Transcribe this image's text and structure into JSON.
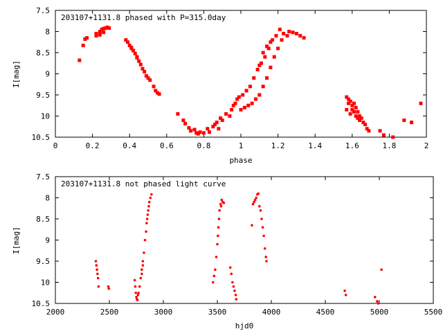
{
  "chart_data": [
    {
      "type": "scatter",
      "title": "203107+1131.8 phased with P=315.0day",
      "xlabel": "phase",
      "ylabel": "I[mag]",
      "xlim": [
        0,
        2
      ],
      "ylim": [
        10.5,
        7.5
      ],
      "y_inverted": true,
      "x_ticks": [
        0,
        0.2,
        0.4,
        0.6,
        0.8,
        1,
        1.2,
        1.4,
        1.6,
        1.8,
        2
      ],
      "x_tick_labels": [
        "0",
        "0.2",
        "0.4",
        "0.6",
        "0.8",
        "1",
        "1.2",
        "1.4",
        "1.6",
        "1.8",
        "2"
      ],
      "y_ticks": [
        7.5,
        8,
        8.5,
        9,
        9.5,
        10,
        10.5
      ],
      "y_tick_labels": [
        "7.5",
        "8",
        "8.5",
        "9",
        "9.5",
        "10",
        "10.5"
      ],
      "grid": false,
      "marker_color": "#ff0000",
      "marker": "square",
      "points": [
        [
          0.13,
          8.68
        ],
        [
          0.15,
          8.33
        ],
        [
          0.16,
          8.18
        ],
        [
          0.17,
          8.15
        ],
        [
          0.22,
          8.1
        ],
        [
          0.22,
          8.05
        ],
        [
          0.24,
          8.0
        ],
        [
          0.25,
          7.95
        ],
        [
          0.26,
          7.93
        ],
        [
          0.27,
          7.92
        ],
        [
          0.28,
          7.9
        ],
        [
          0.29,
          7.92
        ],
        [
          0.24,
          8.08
        ],
        [
          0.26,
          8.02
        ],
        [
          0.38,
          8.2
        ],
        [
          0.39,
          8.25
        ],
        [
          0.4,
          8.33
        ],
        [
          0.41,
          8.4
        ],
        [
          0.42,
          8.45
        ],
        [
          0.43,
          8.52
        ],
        [
          0.44,
          8.6
        ],
        [
          0.45,
          8.7
        ],
        [
          0.46,
          8.78
        ],
        [
          0.47,
          8.88
        ],
        [
          0.48,
          8.95
        ],
        [
          0.49,
          9.05
        ],
        [
          0.5,
          9.1
        ],
        [
          0.51,
          9.15
        ],
        [
          0.53,
          9.3
        ],
        [
          0.54,
          9.4
        ],
        [
          0.55,
          9.45
        ],
        [
          0.56,
          9.48
        ],
        [
          0.41,
          8.38
        ],
        [
          0.44,
          8.62
        ],
        [
          0.66,
          9.95
        ],
        [
          0.69,
          10.1
        ],
        [
          0.7,
          10.18
        ],
        [
          0.72,
          10.28
        ],
        [
          0.73,
          10.35
        ],
        [
          0.75,
          10.32
        ],
        [
          0.76,
          10.4
        ],
        [
          0.77,
          10.42
        ],
        [
          0.78,
          10.38
        ],
        [
          0.8,
          10.4
        ],
        [
          0.82,
          10.3
        ],
        [
          0.83,
          10.38
        ],
        [
          0.85,
          10.25
        ],
        [
          0.86,
          10.2
        ],
        [
          0.87,
          10.15
        ],
        [
          0.88,
          10.3
        ],
        [
          0.89,
          10.05
        ],
        [
          0.9,
          10.1
        ],
        [
          0.92,
          9.95
        ],
        [
          0.94,
          10.0
        ],
        [
          0.95,
          9.85
        ],
        [
          0.96,
          9.75
        ],
        [
          0.97,
          9.7
        ],
        [
          0.98,
          9.6
        ],
        [
          0.99,
          9.55
        ],
        [
          1.0,
          9.85
        ],
        [
          1.01,
          9.5
        ],
        [
          1.02,
          9.8
        ],
        [
          1.03,
          9.4
        ],
        [
          1.04,
          9.75
        ],
        [
          1.05,
          9.3
        ],
        [
          1.06,
          9.7
        ],
        [
          1.07,
          9.1
        ],
        [
          1.08,
          9.6
        ],
        [
          1.09,
          8.9
        ],
        [
          1.1,
          9.5
        ],
        [
          1.11,
          8.75
        ],
        [
          1.12,
          9.3
        ],
        [
          1.13,
          8.6
        ],
        [
          1.14,
          9.1
        ],
        [
          1.15,
          8.4
        ],
        [
          1.16,
          8.85
        ],
        [
          1.17,
          8.2
        ],
        [
          1.18,
          8.6
        ],
        [
          1.19,
          8.1
        ],
        [
          1.2,
          8.4
        ],
        [
          1.21,
          7.95
        ],
        [
          1.22,
          8.2
        ],
        [
          1.23,
          8.05
        ],
        [
          1.25,
          8.1
        ],
        [
          1.26,
          8.0
        ],
        [
          1.28,
          8.02
        ],
        [
          1.3,
          8.05
        ],
        [
          1.32,
          8.1
        ],
        [
          1.34,
          8.15
        ],
        [
          1.1,
          8.8
        ],
        [
          1.12,
          8.5
        ],
        [
          1.14,
          8.35
        ],
        [
          1.16,
          8.25
        ],
        [
          1.57,
          9.55
        ],
        [
          1.58,
          9.6
        ],
        [
          1.58,
          9.7
        ],
        [
          1.59,
          9.65
        ],
        [
          1.6,
          9.75
        ],
        [
          1.6,
          9.85
        ],
        [
          1.61,
          9.7
        ],
        [
          1.61,
          9.9
        ],
        [
          1.62,
          9.8
        ],
        [
          1.62,
          10.0
        ],
        [
          1.63,
          9.9
        ],
        [
          1.63,
          10.05
        ],
        [
          1.64,
          10.0
        ],
        [
          1.64,
          10.1
        ],
        [
          1.65,
          10.05
        ],
        [
          1.66,
          10.15
        ],
        [
          1.67,
          10.2
        ],
        [
          1.68,
          10.3
        ],
        [
          1.69,
          10.35
        ],
        [
          1.57,
          9.85
        ],
        [
          1.59,
          9.95
        ],
        [
          1.75,
          10.35
        ],
        [
          1.77,
          10.45
        ],
        [
          1.82,
          10.5
        ],
        [
          1.88,
          10.1
        ],
        [
          1.92,
          10.15
        ],
        [
          1.97,
          9.7
        ]
      ]
    },
    {
      "type": "scatter",
      "title": "203107+1131.8 not phased light curve",
      "xlabel": "hjd0",
      "ylabel": "I[mag]",
      "xlim": [
        2000,
        5500
      ],
      "ylim": [
        10.5,
        7.5
      ],
      "y_inverted": true,
      "x_ticks": [
        2000,
        2500,
        3000,
        3500,
        4000,
        4500,
        5000,
        5500
      ],
      "x_tick_labels": [
        "2000",
        "2500",
        "3000",
        "3500",
        "4000",
        "4500",
        "5000",
        "5500"
      ],
      "y_ticks": [
        7.5,
        8,
        8.5,
        9,
        9.5,
        10,
        10.5
      ],
      "y_tick_labels": [
        "7.5",
        "8",
        "8.5",
        "9",
        "9.5",
        "10",
        "10.5"
      ],
      "grid": false,
      "marker_color": "#ff0000",
      "marker": "dot",
      "points": [
        [
          2375,
          9.5
        ],
        [
          2380,
          9.6
        ],
        [
          2385,
          9.7
        ],
        [
          2390,
          9.8
        ],
        [
          2395,
          9.9
        ],
        [
          2400,
          10.1
        ],
        [
          2490,
          10.1
        ],
        [
          2495,
          10.15
        ],
        [
          2735,
          9.95
        ],
        [
          2740,
          10.1
        ],
        [
          2745,
          10.25
        ],
        [
          2750,
          10.35
        ],
        [
          2755,
          10.4
        ],
        [
          2760,
          10.42
        ],
        [
          2765,
          10.3
        ],
        [
          2770,
          10.25
        ],
        [
          2780,
          10.1
        ],
        [
          2790,
          9.9
        ],
        [
          2800,
          9.7
        ],
        [
          2810,
          9.5
        ],
        [
          2820,
          9.3
        ],
        [
          2830,
          9.0
        ],
        [
          2840,
          8.8
        ],
        [
          2850,
          8.5
        ],
        [
          2860,
          8.3
        ],
        [
          2870,
          8.1
        ],
        [
          2880,
          8.0
        ],
        [
          2890,
          7.92
        ],
        [
          2845,
          8.6
        ],
        [
          2855,
          8.4
        ],
        [
          2865,
          8.2
        ],
        [
          2800,
          9.8
        ],
        [
          2810,
          9.6
        ],
        [
          3460,
          10.0
        ],
        [
          3470,
          9.85
        ],
        [
          3480,
          9.7
        ],
        [
          3490,
          9.4
        ],
        [
          3500,
          9.1
        ],
        [
          3505,
          8.9
        ],
        [
          3510,
          8.7
        ],
        [
          3515,
          8.5
        ],
        [
          3520,
          8.3
        ],
        [
          3530,
          8.15
        ],
        [
          3540,
          8.05
        ],
        [
          3550,
          8.1
        ],
        [
          3560,
          8.12
        ],
        [
          3535,
          8.2
        ],
        [
          3620,
          9.65
        ],
        [
          3630,
          9.8
        ],
        [
          3640,
          10.0
        ],
        [
          3650,
          10.1
        ],
        [
          3660,
          10.2
        ],
        [
          3670,
          10.3
        ],
        [
          3675,
          10.4
        ],
        [
          3820,
          8.65
        ],
        [
          3830,
          8.15
        ],
        [
          3840,
          8.1
        ],
        [
          3850,
          8.05
        ],
        [
          3860,
          8.0
        ],
        [
          3870,
          7.92
        ],
        [
          3880,
          7.9
        ],
        [
          3890,
          8.2
        ],
        [
          3900,
          8.3
        ],
        [
          3910,
          8.5
        ],
        [
          3920,
          8.7
        ],
        [
          3930,
          8.9
        ],
        [
          3940,
          9.2
        ],
        [
          3950,
          9.4
        ],
        [
          3955,
          9.5
        ],
        [
          4680,
          10.2
        ],
        [
          4690,
          10.3
        ],
        [
          4960,
          10.35
        ],
        [
          4980,
          10.45
        ],
        [
          4990,
          10.5
        ],
        [
          5020,
          9.7
        ]
      ]
    }
  ]
}
